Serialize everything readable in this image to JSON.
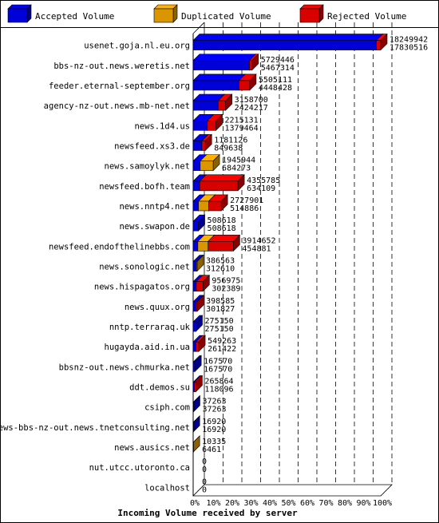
{
  "chart_data": {
    "type": "bar",
    "title": "Incoming Volume received by server",
    "legend": {
      "placement": "top",
      "items": [
        {
          "name": "Accepted Volume",
          "color": "#0000ff"
        },
        {
          "name": "Duplicated Volume",
          "color": "#ffb000"
        },
        {
          "name": "Rejected Volume",
          "color": "#ff0000"
        }
      ]
    },
    "orientation": "horizontal",
    "stacked": true,
    "grid": true,
    "xlim": [
      0,
      100
    ],
    "x_ticks": [
      "0%",
      "10%",
      "20%",
      "30%",
      "40%",
      "50%",
      "60%",
      "70%",
      "80%",
      "90%",
      "100%"
    ],
    "rows": [
      {
        "server": "usenet.goja.nl.eu.org",
        "total": 18249942,
        "accepted": 17830516,
        "duplicated": 0,
        "rejected": 419426,
        "label_top": "18249942",
        "label_bottom": "17830516"
      },
      {
        "server": "bbs-nz-out.news.weretis.net",
        "total": 5729446,
        "accepted": 5467314,
        "duplicated": 0,
        "rejected": 262132,
        "label_top": "5729446",
        "label_bottom": "5467314"
      },
      {
        "server": "feeder.eternal-september.org",
        "total": 5505111,
        "accepted": 4448428,
        "duplicated": 0,
        "rejected": 1056683,
        "label_top": "5505111",
        "label_bottom": "4448428"
      },
      {
        "server": "agency-nz-out.news.mb-net.net",
        "total": 3158700,
        "accepted": 2424217,
        "duplicated": 0,
        "rejected": 734483,
        "label_top": "3158700",
        "label_bottom": "2424217"
      },
      {
        "server": "news.1d4.us",
        "total": 2215131,
        "accepted": 1379464,
        "duplicated": 0,
        "rejected": 835667,
        "label_top": "2215131",
        "label_bottom": "1379464"
      },
      {
        "server": "newsfeed.xs3.de",
        "total": 1181126,
        "accepted": 849638,
        "duplicated": 0,
        "rejected": 331488,
        "label_top": "1181126",
        "label_bottom": "849638"
      },
      {
        "server": "news.samoylyk.net",
        "total": 1945944,
        "accepted": 684273,
        "duplicated": 1261671,
        "rejected": 0,
        "label_top": "1945944",
        "label_bottom": "684273"
      },
      {
        "server": "newsfeed.bofh.team",
        "total": 4355785,
        "accepted": 634109,
        "duplicated": 0,
        "rejected": 3721676,
        "label_top": "4355785",
        "label_bottom": "634109"
      },
      {
        "server": "news.nntp4.net",
        "total": 2727901,
        "accepted": 514886,
        "duplicated": 1000000,
        "rejected": 1213015,
        "label_top": "2727901",
        "label_bottom": "514886"
      },
      {
        "server": "news.swapon.de",
        "total": 508618,
        "accepted": 508618,
        "duplicated": 0,
        "rejected": 0,
        "label_top": "508618",
        "label_bottom": "508618"
      },
      {
        "server": "newsfeed.endofthelinebbs.com",
        "total": 3914652,
        "accepted": 454881,
        "duplicated": 1000000,
        "rejected": 2459771,
        "label_top": "3914652",
        "label_bottom": "454881"
      },
      {
        "server": "news.sonologic.net",
        "total": 386563,
        "accepted": 312610,
        "duplicated": 73953,
        "rejected": 0,
        "label_top": "386563",
        "label_bottom": "312610"
      },
      {
        "server": "news.hispagatos.org",
        "total": 956975,
        "accepted": 302389,
        "duplicated": 0,
        "rejected": 654586,
        "label_top": "956975",
        "label_bottom": "302389"
      },
      {
        "server": "news.quux.org",
        "total": 398585,
        "accepted": 301827,
        "duplicated": 0,
        "rejected": 96758,
        "label_top": "398585",
        "label_bottom": "301827"
      },
      {
        "server": "nntp.terraraq.uk",
        "total": 275150,
        "accepted": 275150,
        "duplicated": 0,
        "rejected": 0,
        "label_top": "275150",
        "label_bottom": "275150"
      },
      {
        "server": "hugayda.aid.in.ua",
        "total": 549263,
        "accepted": 261422,
        "duplicated": 0,
        "rejected": 287841,
        "label_top": "549263",
        "label_bottom": "261422"
      },
      {
        "server": "bbsnz-out.news.chmurka.net",
        "total": 167570,
        "accepted": 167570,
        "duplicated": 0,
        "rejected": 0,
        "label_top": "167570",
        "label_bottom": "167570"
      },
      {
        "server": "ddt.demos.su",
        "total": 265864,
        "accepted": 118096,
        "duplicated": 0,
        "rejected": 147768,
        "label_top": "265864",
        "label_bottom": "118096"
      },
      {
        "server": "csiph.com",
        "total": 37263,
        "accepted": 37263,
        "duplicated": 0,
        "rejected": 0,
        "label_top": "37263",
        "label_bottom": "37263"
      },
      {
        "server": "news-bbs-nz-out.news.tnetconsulting.net",
        "total": 16920,
        "accepted": 16920,
        "duplicated": 0,
        "rejected": 0,
        "label_top": "16920",
        "label_bottom": "16920"
      },
      {
        "server": "news.ausics.net",
        "total": 10335,
        "accepted": 6461,
        "duplicated": 3874,
        "rejected": 0,
        "label_top": "10335",
        "label_bottom": "6461"
      },
      {
        "server": "nut.utcc.utoronto.ca",
        "total": 0,
        "accepted": 0,
        "duplicated": 0,
        "rejected": 0,
        "label_top": "0",
        "label_bottom": "0"
      },
      {
        "server": "localhost",
        "total": 0,
        "accepted": 0,
        "duplicated": 0,
        "rejected": 0,
        "label_top": "0",
        "label_bottom": "0"
      }
    ]
  }
}
